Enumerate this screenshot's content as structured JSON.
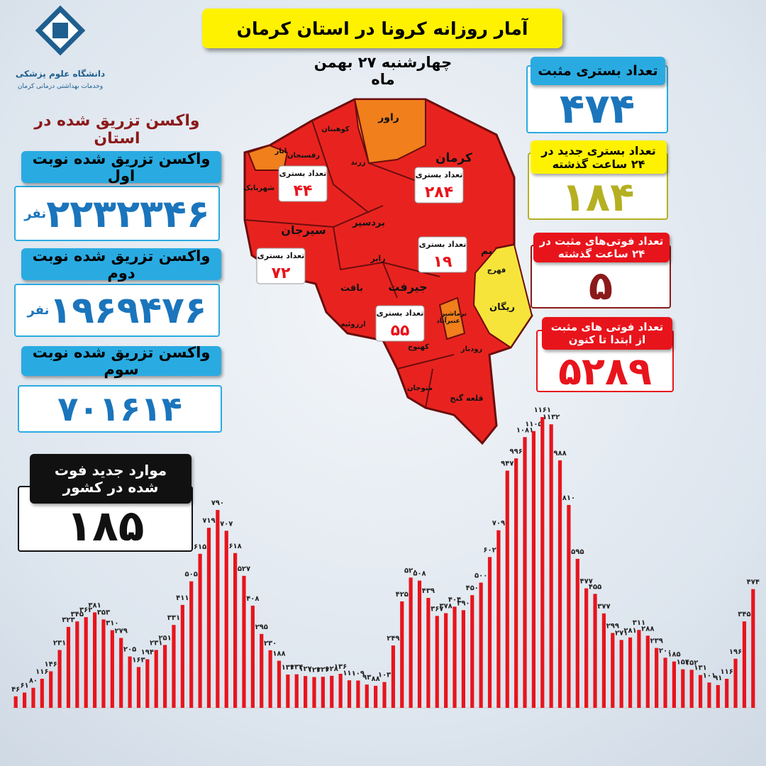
{
  "header": {
    "title": "آمار روزانه کرونا در استان کرمان",
    "date": "چهارشنبه ۲۷ بهمن ماه",
    "university": "دانشگاه علوم پزشکی",
    "university_sub": "وخدمات بهداشتی درمانی کرمان"
  },
  "vaccine": {
    "title": "واکسن تزریق شده در استان",
    "doses": [
      {
        "label": "واکسن تزریق شده نوبت اول",
        "value": "۲۲۳۲۳۴۶",
        "unit": "نفر"
      },
      {
        "label": "واکسن تزریق شده نوبت دوم",
        "value": "۱۹۶۹۴۷۶",
        "unit": "نفر"
      },
      {
        "label": "واکسن تزریق شده نوبت سوم",
        "value": "۷۰۱۶۱۴"
      }
    ]
  },
  "national_deaths": {
    "label": "موارد جدید فوت شده در کشور",
    "value": "۱۸۵"
  },
  "stats": [
    {
      "label": "تعداد بستری مثبت",
      "value": "۴۷۴"
    },
    {
      "label": "تعداد بستری جدید در ۲۴ ساعت گذشته",
      "value": "۱۸۴"
    },
    {
      "label": "تعداد فوتی‌های مثبت در ۲۴ ساعت گذشته",
      "value": "۵"
    },
    {
      "label": "تعداد فوتی های مثبت از ابتدا تا کنون",
      "value": "۵۲۸۹"
    }
  ],
  "map": {
    "regions": [
      "راور",
      "کوهبنان",
      "انار",
      "شهربابک",
      "رفسنجان",
      "زرند",
      "کرمان",
      "بردسیر",
      "سیرجان",
      "رابر",
      "بافت",
      "جیرفت",
      "ارزوئیه",
      "بم",
      "فهرج",
      "ریگان",
      "نرماشیر",
      "عنبرآباد",
      "کهنوج",
      "منوجان",
      "رودبار",
      "قلعه گنج"
    ],
    "callouts": [
      {
        "label": "تعداد بستری",
        "value": "۴۴"
      },
      {
        "label": "تعداد بستری",
        "value": "۲۸۴"
      },
      {
        "label": "تعداد بستری",
        "value": "۷۲"
      },
      {
        "label": "تعداد بستری",
        "value": "۱۹"
      },
      {
        "label": "تعداد بستری",
        "value": "۵۵"
      }
    ]
  },
  "chart_data": {
    "type": "bar",
    "color": "#e8141c",
    "categories": [
      null,
      null,
      null,
      null,
      null,
      null,
      null,
      null,
      null,
      null,
      null,
      null,
      null,
      null,
      null,
      null,
      null,
      null,
      null,
      null,
      null,
      null,
      null,
      null,
      null,
      null,
      null,
      null,
      null,
      null,
      null,
      null,
      null,
      null,
      null,
      null,
      null,
      null,
      null,
      null,
      null,
      null,
      null,
      null,
      null,
      null,
      null,
      null,
      null,
      null,
      null,
      null,
      null,
      null,
      null,
      null,
      null,
      null,
      null,
      null,
      null,
      null,
      null,
      null,
      null,
      null,
      null,
      null,
      null,
      null,
      null,
      null,
      null,
      null,
      null,
      null,
      null,
      null,
      null,
      null,
      null,
      null,
      null,
      null,
      null
    ],
    "values": [
      46,
      61,
      80,
      116,
      146,
      231,
      323,
      345,
      362,
      381,
      353,
      310,
      279,
      205,
      163,
      194,
      231,
      251,
      331,
      411,
      505,
      615,
      719,
      790,
      707,
      618,
      527,
      408,
      295,
      230,
      188,
      133,
      134,
      127,
      123,
      124,
      128,
      136,
      110,
      109,
      93,
      88,
      103,
      249,
      425,
      520,
      508,
      439,
      367,
      378,
      404,
      390,
      450,
      500,
      602,
      709,
      947,
      996,
      1081,
      1105,
      1161,
      1132,
      988,
      810,
      595,
      477,
      455,
      377,
      299,
      271,
      281,
      311,
      288,
      239,
      200,
      185,
      154,
      152,
      131,
      101,
      91,
      116,
      196,
      345,
      474
    ],
    "value_labels": [
      "۴۶",
      "۶۱",
      "۸۰",
      "۱۱۶",
      "۱۴۶",
      "۲۳۱",
      "۳۲۳",
      "۳۴۵",
      "۳۶۲",
      "۳۸۱",
      "۳۵۳",
      "۳۱۰",
      "۲۷۹",
      "۲۰۵",
      "۱۶۳",
      "۱۹۴",
      "۲۳۱",
      "۲۵۱",
      "۳۳۱",
      "۴۱۱",
      "۵۰۵",
      "۶۱۵",
      "۷۱۹",
      "۷۹۰",
      "۷۰۷",
      "۶۱۸",
      "۵۲۷",
      "۴۰۸",
      "۲۹۵",
      "۲۳۰",
      "۱۸۸",
      "۱۳۳",
      "۱۳۴",
      "۱۲۷",
      "۱۲۳",
      "۱۲۴",
      "۱۲۸",
      "۱۳۶",
      "۱۱۰",
      "۱۰۹",
      "۹۳",
      "۸۸",
      "۱۰۳",
      "۲۴۹",
      "۴۲۵",
      "۵۲۰",
      "۵۰۸",
      "۴۳۹",
      "۳۶۷",
      "۳۷۸",
      "۴۰۴",
      "۳۹۰",
      "۴۵۰",
      "۵۰۰",
      "۶۰۲",
      "۷۰۹",
      "۹۴۷",
      "۹۹۶",
      "۱۰۸۱",
      "۱۱۰۵",
      "۱۱۶۱",
      "۱۱۳۲",
      "۹۸۸",
      "۸۱۰",
      "۵۹۵",
      "۴۷۷",
      "۴۵۵",
      "۳۷۷",
      "۲۹۹",
      "۲۷۱",
      "۲۸۱",
      "۳۱۱",
      "۲۸۸",
      "۲۳۹",
      "۲۰۰",
      "۱۸۵",
      "۱۵۴",
      "۱۵۲",
      "۱۳۱",
      "۱۰۱",
      "۹۱",
      "۱۱۶",
      "۱۹۶",
      "۳۴۵",
      "۴۷۴"
    ]
  }
}
